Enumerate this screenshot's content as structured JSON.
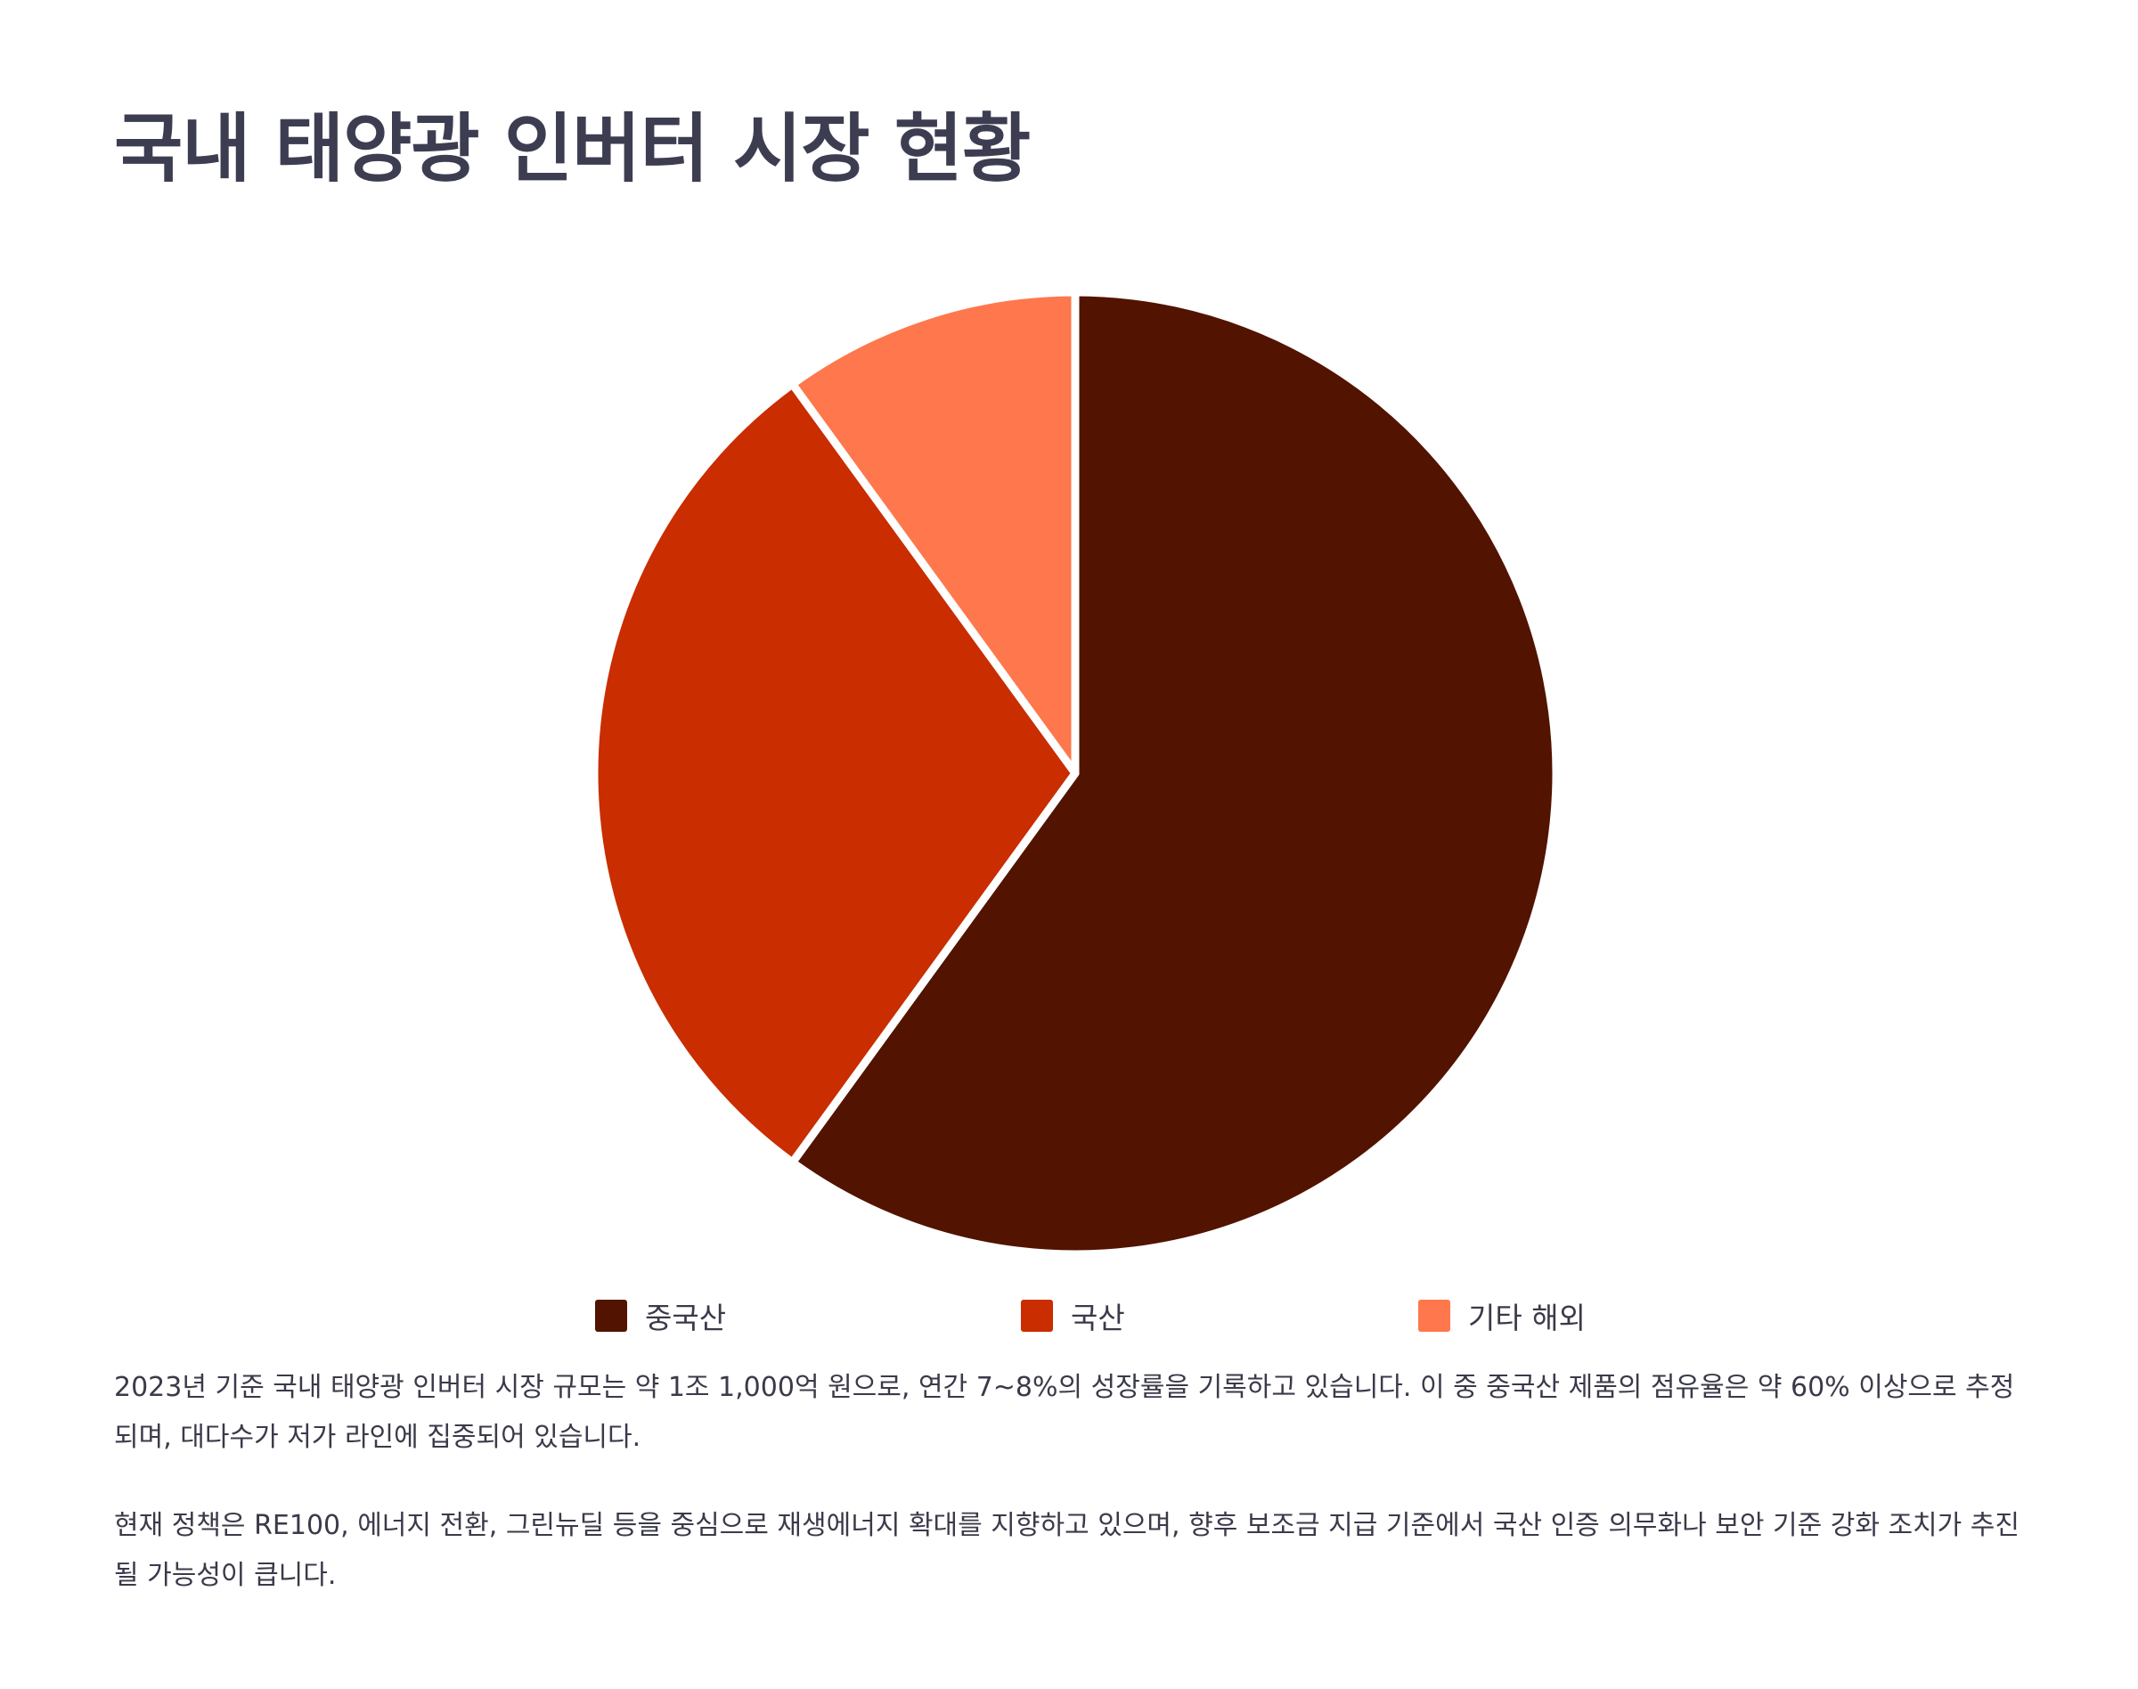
{
  "title": "국내 태양광 인버터 시장 현황",
  "chart_data": {
    "type": "pie",
    "categories": [
      "중국산",
      "국산",
      "기타 해외"
    ],
    "values": [
      60,
      30,
      10
    ],
    "colors": [
      "#521300",
      "#c92d00",
      "#ff774c"
    ],
    "legend_position": "bottom"
  },
  "paragraphs": [
    "2023년 기준 국내 태양광 인버터 시장 규모는 약 1조 1,000억 원으로, 연간 7~8%의 성장률을 기록하고 있습니다. 이 중 중국산 제품의 점유율은 약 60% 이상으로 추정되며, 대다수가 저가 라인에 집중되어 있습니다.",
    "현재 정책은 RE100, 에너지 전환, 그린뉴딜 등을 중심으로 재생에너지 확대를 지향하고 있으며, 향후 보조금 지급 기준에서 국산 인증 의무화나 보안 기준 강화 조치가 추진될 가능성이 큽니다."
  ]
}
